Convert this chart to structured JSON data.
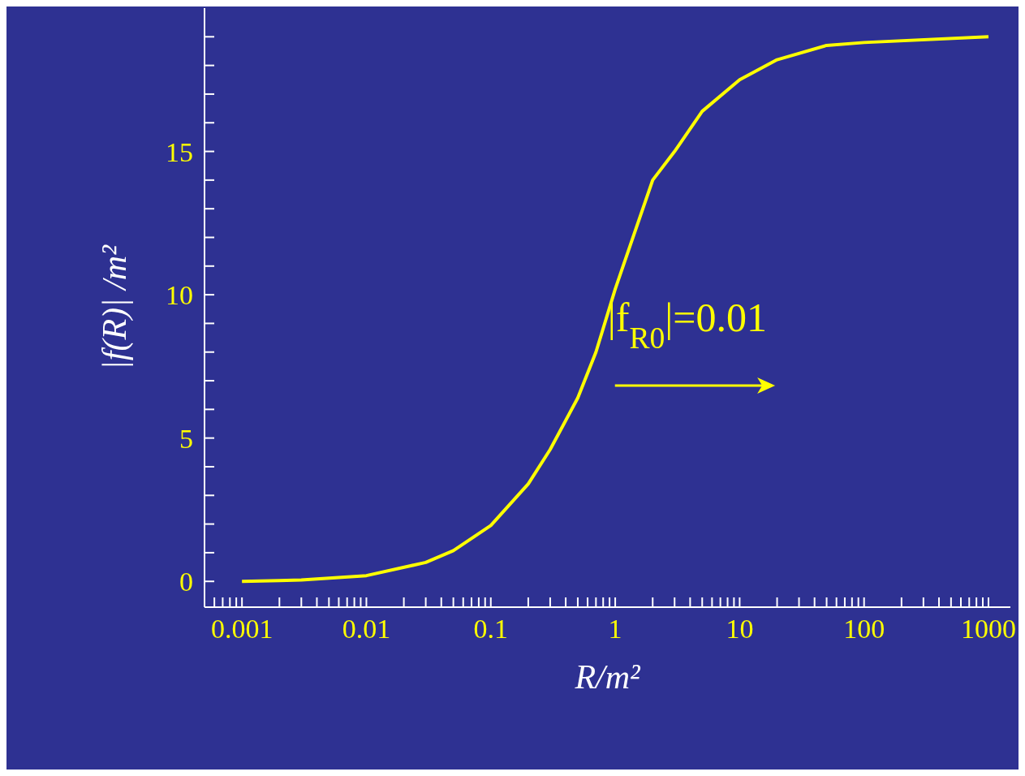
{
  "chart_data": {
    "type": "line",
    "xlabel": "R/m²",
    "ylabel": "|f(R)| /m²",
    "annotations": [
      "|f$_{R0}$|=0.01"
    ],
    "log": "x",
    "grid": false,
    "legend": false,
    "xlim": [
      0.0005,
      1500
    ],
    "xticks": [
      {
        "value": 0.0006,
        "label": null
      },
      {
        "value": 0.0007,
        "label": null
      },
      {
        "value": 0.0008,
        "label": null
      },
      {
        "value": 0.0009,
        "label": null
      },
      0.001,
      {
        "value": 0.002,
        "label": null
      },
      {
        "value": 0.003,
        "label": null
      },
      {
        "value": 0.004,
        "label": null
      },
      {
        "value": 0.005,
        "label": null
      },
      {
        "value": 0.006,
        "label": null
      },
      {
        "value": 0.007,
        "label": null
      },
      {
        "value": 0.008,
        "label": null
      },
      {
        "value": 0.009,
        "label": null
      },
      0.01,
      {
        "value": 0.02,
        "label": null
      },
      {
        "value": 0.03,
        "label": null
      },
      {
        "value": 0.04,
        "label": null
      },
      {
        "value": 0.05,
        "label": null
      },
      {
        "value": 0.06,
        "label": null
      },
      {
        "value": 0.07,
        "label": null
      },
      {
        "value": 0.08,
        "label": null
      },
      {
        "value": 0.09,
        "label": null
      },
      0.1,
      {
        "value": 0.2,
        "label": null
      },
      {
        "value": 0.3,
        "label": null
      },
      {
        "value": 0.4,
        "label": null
      },
      {
        "value": 0.5,
        "label": null
      },
      {
        "value": 0.6,
        "label": null
      },
      {
        "value": 0.7,
        "label": null
      },
      {
        "value": 0.8,
        "label": null
      },
      {
        "value": 0.9,
        "label": null
      },
      1,
      {
        "value": 2,
        "label": null
      },
      {
        "value": 3,
        "label": null
      },
      {
        "value": 4,
        "label": null
      },
      {
        "value": 5,
        "label": null
      },
      {
        "value": 6,
        "label": null
      },
      {
        "value": 7,
        "label": null
      },
      {
        "value": 8,
        "label": null
      },
      {
        "value": 9,
        "label": null
      },
      10,
      {
        "value": 20,
        "label": null
      },
      {
        "value": 30,
        "label": null
      },
      {
        "value": 40,
        "label": null
      },
      {
        "value": 50,
        "label": null
      },
      {
        "value": 60,
        "label": null
      },
      {
        "value": 70,
        "label": null
      },
      {
        "value": 80,
        "label": null
      },
      {
        "value": 90,
        "label": null
      },
      100,
      {
        "value": 200,
        "label": null
      },
      {
        "value": 300,
        "label": null
      },
      {
        "value": 400,
        "label": null
      },
      {
        "value": 500,
        "label": null
      },
      {
        "value": 600,
        "label": null
      },
      {
        "value": 700,
        "label": null
      },
      {
        "value": 800,
        "label": null
      },
      {
        "value": 900,
        "label": null
      },
      1000
    ],
    "ylim": [
      -0.9,
      20
    ],
    "yticks": [
      0,
      {
        "value": 1,
        "label": null
      },
      {
        "value": 2,
        "label": null
      },
      {
        "value": 3,
        "label": null
      },
      {
        "value": 4,
        "label": null
      },
      5,
      {
        "value": 6,
        "label": null
      },
      {
        "value": 7,
        "label": null
      },
      {
        "value": 8,
        "label": null
      },
      {
        "value": 9,
        "label": null
      },
      10,
      {
        "value": 11,
        "label": null
      },
      {
        "value": 12,
        "label": null
      },
      {
        "value": 13,
        "label": null
      },
      {
        "value": 14,
        "label": null
      },
      15,
      {
        "value": 16,
        "label": null
      },
      {
        "value": 17,
        "label": null
      },
      {
        "value": 18,
        "label": null
      },
      {
        "value": 19,
        "label": null
      }
    ],
    "series": [
      {
        "color": "#ffff00",
        "x": [
          0.001,
          0.002,
          0.003,
          0.01,
          0.03,
          0.05,
          0.1,
          0.2,
          0.3,
          0.5,
          0.7,
          1,
          2,
          3,
          5,
          10,
          20,
          50,
          100,
          1000
        ],
        "values": [
          0,
          0.03,
          0.05,
          0.2,
          0.66,
          1.07,
          1.95,
          3.4,
          4.6,
          6.4,
          8.0,
          10.2,
          14.0,
          15.0,
          16.4,
          17.5,
          18.2,
          18.7,
          18.8,
          19.0
        ]
      }
    ]
  }
}
